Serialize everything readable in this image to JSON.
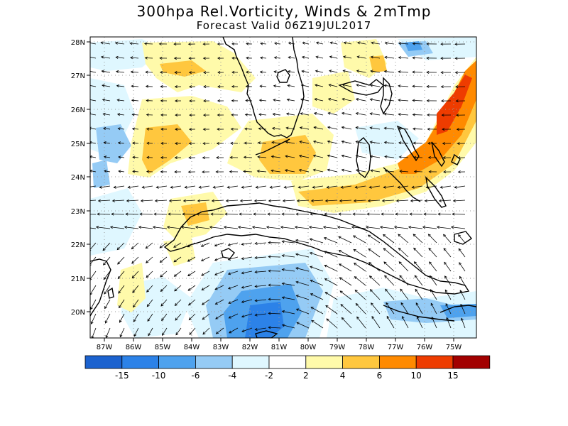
{
  "title": "300hpa Rel.Vorticity, Winds & 2mTmp",
  "subtitle": "Forecast Valid  06Z19JUL2017",
  "lat_labels": [
    "28N",
    "27N",
    "26N",
    "25N",
    "24N",
    "23N",
    "22N",
    "21N",
    "20N"
  ],
  "lon_labels": [
    "87W",
    "86W",
    "85W",
    "84W",
    "83W",
    "82W",
    "81W",
    "80W",
    "79W",
    "78W",
    "77W",
    "76W",
    "75W"
  ],
  "colorbar": {
    "colors": [
      "#1b62cf",
      "#2c82e8",
      "#4ea2ee",
      "#95cbf5",
      "#dff7ff",
      "#ffffff",
      "#fffaaa",
      "#ffc73e",
      "#ff8a00",
      "#ee3c00",
      "#a20000"
    ],
    "labels": [
      "-15",
      "-10",
      "-6",
      "-4",
      "-2",
      "2",
      "4",
      "6",
      "10",
      "15"
    ]
  },
  "palette": {
    "coast": "#000000",
    "arrow": "#000000",
    "grid": "#9a9a9a"
  }
}
